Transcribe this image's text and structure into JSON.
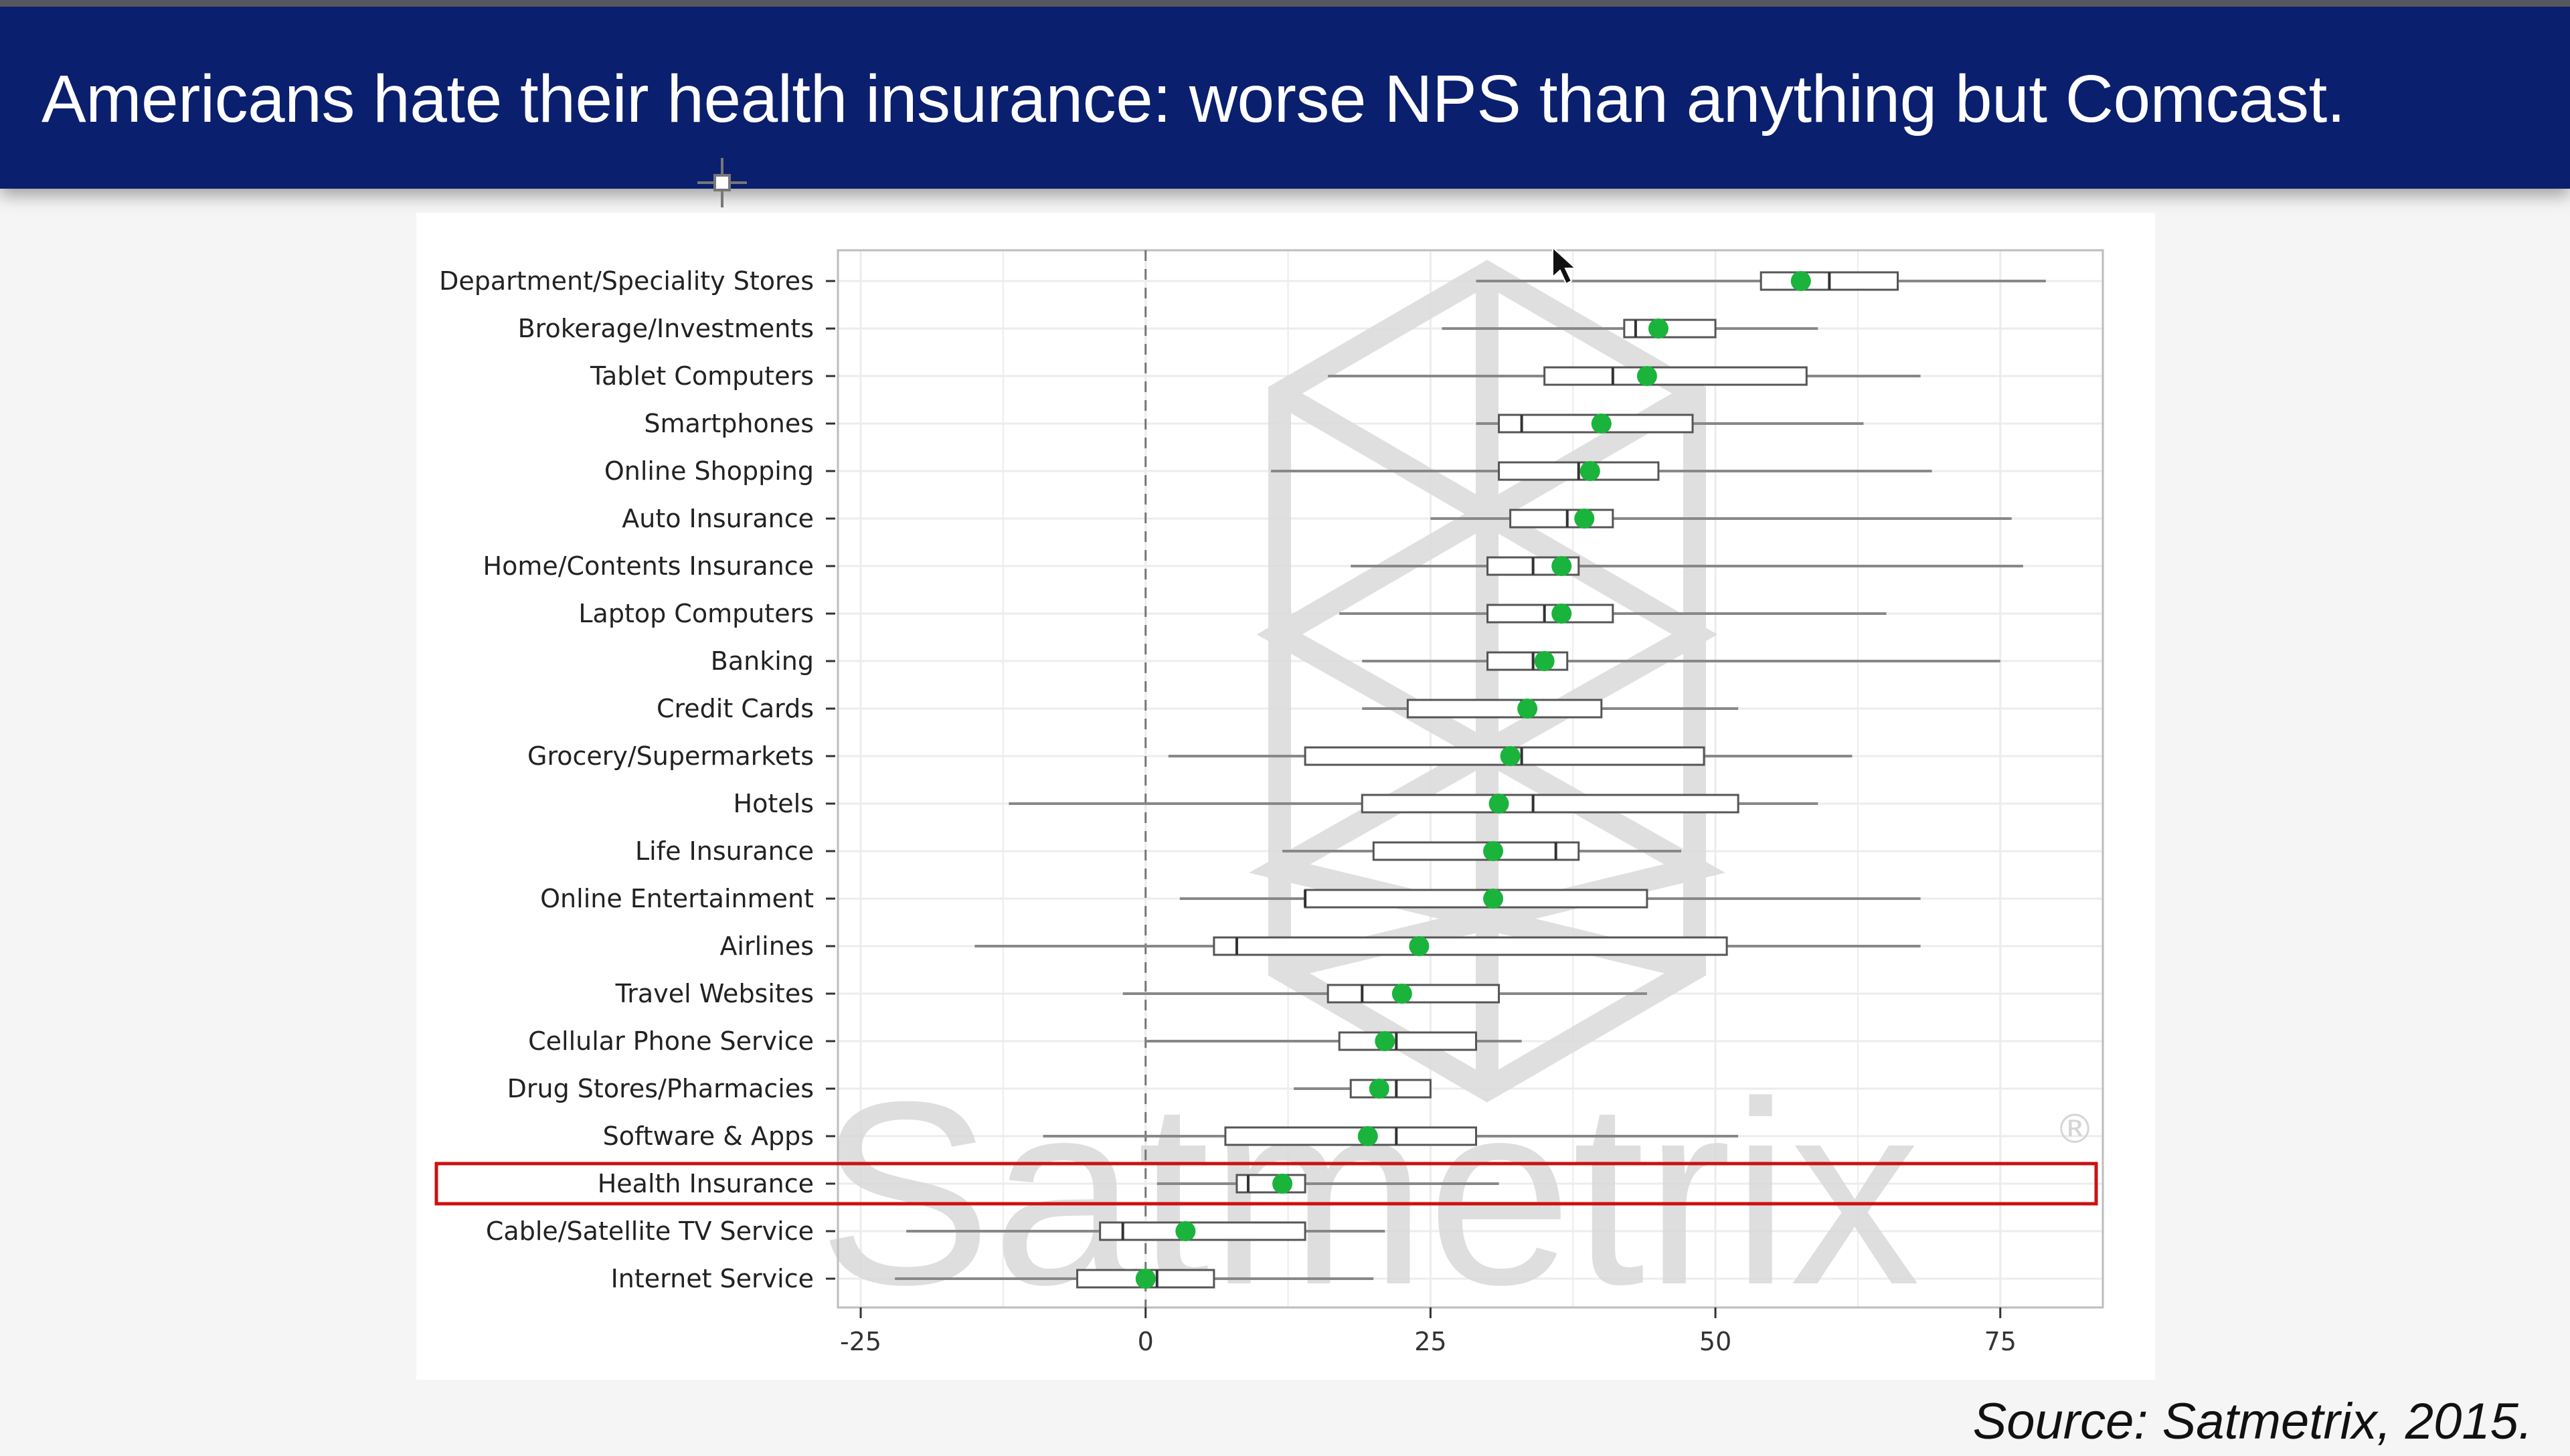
{
  "slide": {
    "title": "Americans hate their health insurance: worse NPS than anything but Comcast.",
    "source": "Source: Satmetrix, 2015.",
    "watermark": "Satmetrix",
    "watermark_mark": "®"
  },
  "colors": {
    "header_bg": "#0a1f6e",
    "header_text": "#ffffff",
    "mean_dot": "#1ab33c",
    "box_stroke": "#555555",
    "whisker": "#888888",
    "highlight": "#cc1111",
    "zero_line": "#777777",
    "grid": "#ececec"
  },
  "icons": {
    "pointer": "arrow-cursor-icon",
    "move": "move-cursor-icon"
  },
  "chart_data": {
    "type": "boxplot",
    "title": "",
    "xlabel": "",
    "ylabel": "",
    "xlim": [
      -27,
      84
    ],
    "x_ticks": [
      -25,
      0,
      25,
      50,
      75
    ],
    "x_tick_labels": [
      "-25",
      "0",
      "25",
      "50",
      "75"
    ],
    "reference_line": 0,
    "grid": true,
    "highlighted_category": "Health Insurance",
    "categories": [
      "Department/Speciality Stores",
      "Brokerage/Investments",
      "Tablet Computers",
      "Smartphones",
      "Online Shopping",
      "Auto Insurance",
      "Home/Contents Insurance",
      "Laptop Computers",
      "Banking",
      "Credit Cards",
      "Grocery/Supermarkets",
      "Hotels",
      "Life Insurance",
      "Online Entertainment",
      "Airlines",
      "Travel Websites",
      "Cellular Phone Service",
      "Drug Stores/Pharmacies",
      "Software & Apps",
      "Health Insurance",
      "Cable/Satellite TV Service",
      "Internet Service"
    ],
    "min": [
      29,
      26,
      16,
      29,
      11,
      25,
      18,
      17,
      19,
      19,
      2,
      -12,
      12,
      3,
      -15,
      -2,
      0,
      13,
      -9,
      1,
      -21,
      -22
    ],
    "q1": [
      54,
      42,
      35,
      31,
      31,
      32,
      30,
      30,
      30,
      23,
      14,
      19,
      20,
      14,
      6,
      16,
      17,
      18,
      7,
      8,
      -4,
      -6
    ],
    "median": [
      60,
      43,
      41,
      33,
      38,
      37,
      34,
      35,
      34,
      33,
      33,
      34,
      36,
      14,
      8,
      19,
      22,
      22,
      22,
      9,
      -2,
      1
    ],
    "q3": [
      66,
      50,
      58,
      48,
      45,
      41,
      38,
      41,
      37,
      40,
      49,
      52,
      38,
      44,
      51,
      31,
      29,
      25,
      29,
      14,
      14,
      6
    ],
    "max": [
      79,
      59,
      68,
      63,
      69,
      76,
      77,
      65,
      75,
      52,
      62,
      59,
      47,
      68,
      68,
      44,
      33,
      25,
      52,
      31,
      21,
      20
    ],
    "mean": [
      57.5,
      45,
      44,
      40,
      39,
      38.5,
      36.5,
      36.5,
      35,
      33.5,
      32,
      31,
      30.5,
      30.5,
      24,
      22.5,
      21,
      20.5,
      19.5,
      12,
      3.5,
      0
    ]
  }
}
